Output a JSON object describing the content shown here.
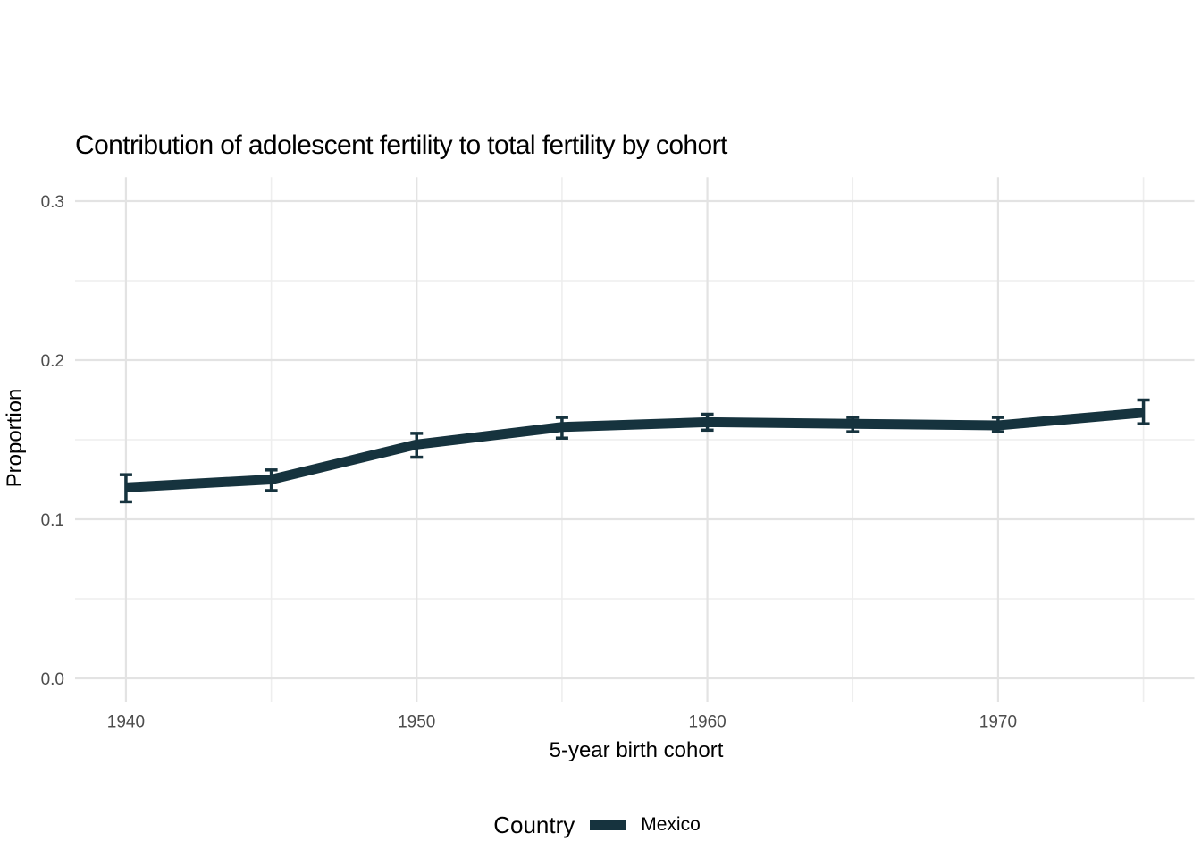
{
  "chart_data": {
    "type": "line",
    "title": "Contribution of adolescent fertility to total fertility by cohort",
    "xlabel": "5-year birth cohort",
    "ylabel": "Proportion",
    "legend": {
      "title": "Country",
      "position": "bottom"
    },
    "grid": true,
    "xlim": [
      1940,
      1975
    ],
    "ylim": [
      0,
      0.3
    ],
    "x_tick_values": [
      1940,
      1950,
      1960,
      1970
    ],
    "x_tick_labels": [
      "1940",
      "1950",
      "1960",
      "1970"
    ],
    "x_minor_gridlines": [
      1945,
      1955,
      1965,
      1975
    ],
    "y_tick_values": [
      0,
      0.1,
      0.2,
      0.3
    ],
    "y_tick_labels": [
      "0.0",
      "0.1",
      "0.2",
      "0.3"
    ],
    "y_minor_gridlines": [
      0.05,
      0.15,
      0.25
    ],
    "series": [
      {
        "name": "Mexico",
        "color": "#16333e",
        "x": [
          1940,
          1945,
          1950,
          1955,
          1960,
          1965,
          1970,
          1975
        ],
        "y": [
          0.12,
          0.125,
          0.147,
          0.158,
          0.161,
          0.16,
          0.159,
          0.167
        ],
        "y_low": [
          0.111,
          0.118,
          0.139,
          0.151,
          0.156,
          0.155,
          0.155,
          0.16
        ],
        "y_high": [
          0.128,
          0.131,
          0.154,
          0.164,
          0.166,
          0.164,
          0.164,
          0.175
        ],
        "error_bars": true
      }
    ],
    "colors": {
      "grid_major": "#e3e3e3",
      "grid_minor": "#eeeeee",
      "tick_label": "#4d4d4d",
      "text": "#000000",
      "background": "#ffffff"
    }
  }
}
